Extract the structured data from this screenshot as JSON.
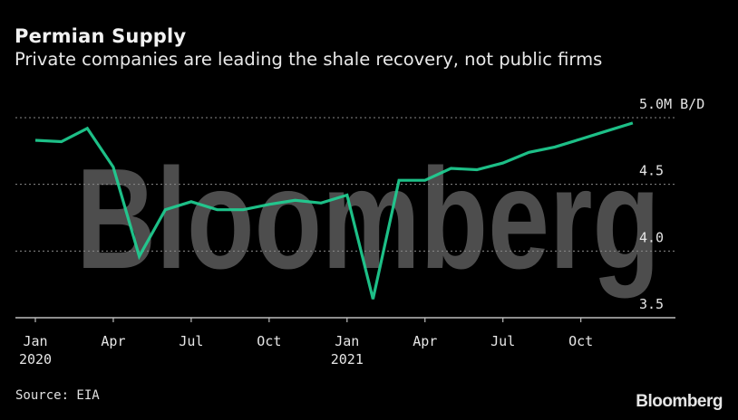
{
  "header": {
    "title": "Permian Supply",
    "subtitle": "Private companies are leading the shale recovery, not public firms"
  },
  "footer": {
    "source": "Source: EIA",
    "brand": "Bloomberg"
  },
  "watermark": "Bloomberg",
  "colors": {
    "background": "#000000",
    "line": "#1fcf92",
    "grid": "#8a8a8a",
    "axis": "#bdbdbd",
    "text": "#e6e6e6",
    "watermark": "#5a5a5a"
  },
  "chart_data": {
    "type": "line",
    "title": "Permian Supply",
    "subtitle": "Private companies are leading the shale recovery, not public firms",
    "xlabel": "",
    "ylabel": "M B/D",
    "unit_label": "5.0M B/D",
    "ylim": [
      3.5,
      5.0
    ],
    "yticks": [
      3.5,
      4.0,
      4.5,
      5.0
    ],
    "ytick_labels": [
      "3.5",
      "4.0",
      "4.5",
      "5.0M B/D"
    ],
    "xtick_labels": [
      {
        "label": "Jan",
        "sub": "2020"
      },
      {
        "label": "Apr",
        "sub": ""
      },
      {
        "label": "Jul",
        "sub": ""
      },
      {
        "label": "Oct",
        "sub": ""
      },
      {
        "label": "Jan",
        "sub": "2021"
      },
      {
        "label": "Apr",
        "sub": ""
      },
      {
        "label": "Jul",
        "sub": ""
      },
      {
        "label": "Oct",
        "sub": ""
      }
    ],
    "grid": true,
    "legend": null,
    "x": [
      "2020-01",
      "2020-02",
      "2020-03",
      "2020-04",
      "2020-05",
      "2020-06",
      "2020-07",
      "2020-08",
      "2020-09",
      "2020-10",
      "2020-11",
      "2020-12",
      "2021-01",
      "2021-02",
      "2021-03",
      "2021-04",
      "2021-05",
      "2021-06",
      "2021-07",
      "2021-08",
      "2021-09",
      "2021-10",
      "2021-11",
      "2021-12"
    ],
    "series": [
      {
        "name": "Permian supply",
        "values": [
          4.83,
          4.82,
          4.92,
          4.63,
          3.96,
          4.31,
          4.37,
          4.31,
          4.31,
          4.35,
          4.38,
          4.36,
          4.42,
          3.64,
          4.53,
          4.53,
          4.62,
          4.61,
          4.66,
          4.74,
          4.78,
          4.84,
          4.9,
          4.96
        ]
      }
    ],
    "source": "Source: EIA"
  }
}
